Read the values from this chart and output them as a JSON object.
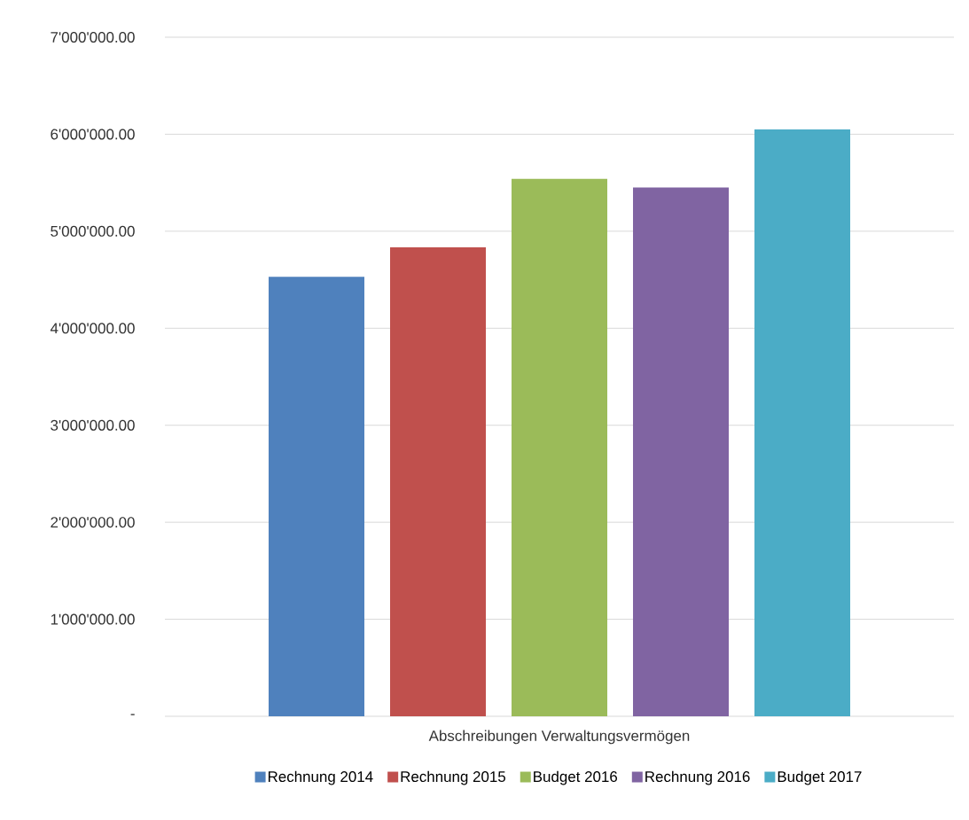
{
  "chart_data": {
    "type": "bar",
    "categories": [
      "Abschreibungen Verwaltungsvermögen"
    ],
    "series": [
      {
        "name": "Rechnung 2014",
        "color": "#4f81bd",
        "values": [
          4530000
        ]
      },
      {
        "name": "Rechnung 2015",
        "color": "#c0504d",
        "values": [
          4835000
        ]
      },
      {
        "name": "Budget 2016",
        "color": "#9bbb59",
        "values": [
          5540000
        ]
      },
      {
        "name": "Rechnung 2016",
        "color": "#8064a2",
        "values": [
          5450000
        ]
      },
      {
        "name": "Budget 2017",
        "color": "#4bacc6",
        "values": [
          6050000
        ]
      }
    ],
    "ylim": [
      0,
      7000000
    ],
    "yticks": [
      {
        "value": 0,
        "label": "-"
      },
      {
        "value": 1000000,
        "label": "1'000'000.00"
      },
      {
        "value": 2000000,
        "label": "2'000'000.00"
      },
      {
        "value": 3000000,
        "label": "3'000'000.00"
      },
      {
        "value": 4000000,
        "label": "4'000'000.00"
      },
      {
        "value": 5000000,
        "label": "5'000'000.00"
      },
      {
        "value": 6000000,
        "label": "6'000'000.00"
      },
      {
        "value": 7000000,
        "label": "7'000'000.00"
      }
    ],
    "grid": "y",
    "legend": "bottom"
  }
}
